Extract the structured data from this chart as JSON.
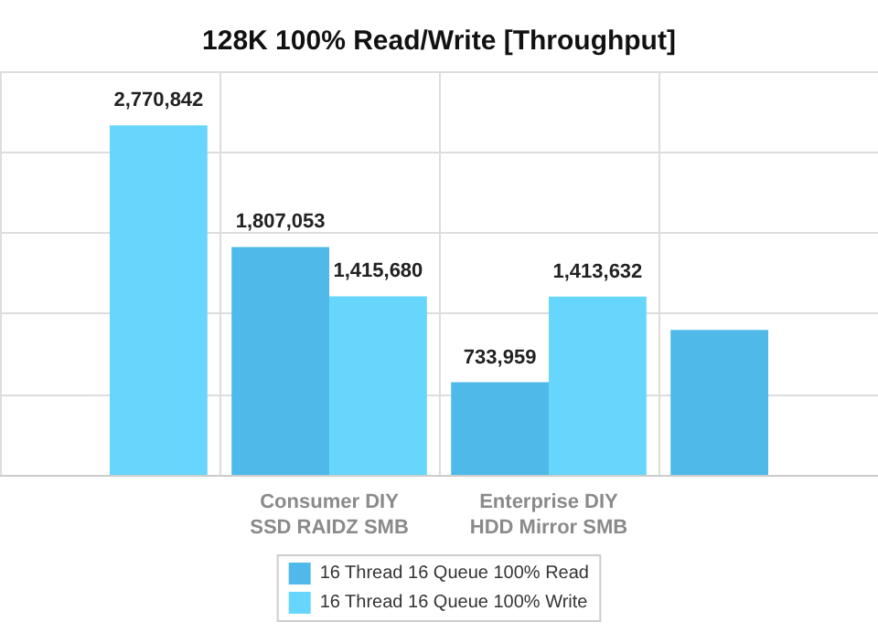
{
  "chart_data": {
    "type": "bar",
    "title": "128K 100% Read/Write [Throughput]",
    "categories": [
      null,
      "Consumer DIY\nSSD RAIDZ SMB",
      "Enterprise DIY\nHDD Mirror SMB",
      null
    ],
    "series": [
      {
        "name": "16 Thread 16 Queue 100% Read",
        "color": "#4fb9e9",
        "values": [
          null,
          1807053,
          733959,
          1150000
        ],
        "value_labels": [
          null,
          "1,807,053",
          "733,959",
          null
        ]
      },
      {
        "name": "16 Thread 16 Queue 100% Write",
        "color": "#66d6fc",
        "values": [
          2770842,
          1415680,
          1413632,
          null
        ],
        "value_labels": [
          "2,770,842",
          "1,415,680",
          "1,413,632",
          null
        ]
      }
    ],
    "ylim": [
      0,
      3200000
    ],
    "yticks": [
      {
        "value": 0,
        "label": null
      },
      {
        "value": 640000,
        "label": null
      },
      {
        "value": 1280000,
        "label": null
      },
      {
        "value": 1920000,
        "label": null
      },
      {
        "value": 2560000,
        "label": null
      },
      {
        "value": 3200000,
        "label": null
      }
    ],
    "tick_labels": "x",
    "grid": true,
    "legend": "bottom"
  }
}
